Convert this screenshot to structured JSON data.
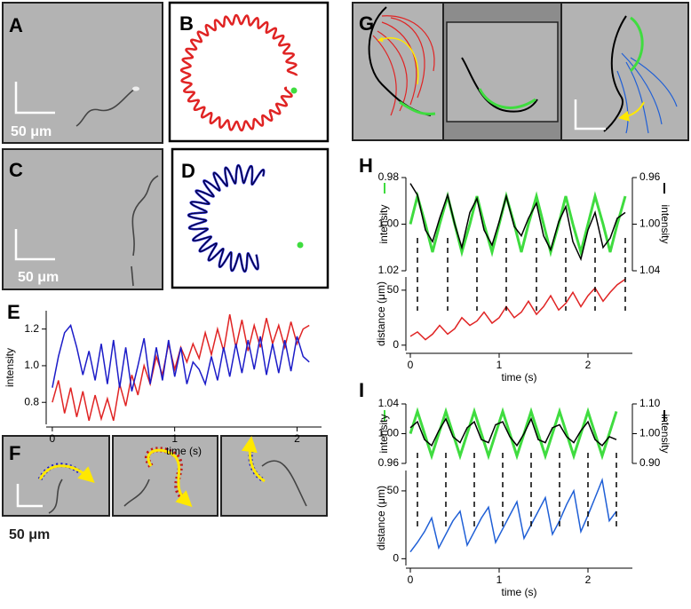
{
  "panels": {
    "A": {
      "label": "A",
      "scale_label": "50 μm"
    },
    "B": {
      "label": "B"
    },
    "C": {
      "label": "C",
      "scale_label": "50 μm"
    },
    "D": {
      "label": "D"
    },
    "F": {
      "label": "F",
      "scale_label": "50 μm"
    },
    "G": {
      "label": "G"
    }
  },
  "chart_data": [
    {
      "type": "line",
      "label": "E",
      "ylabel": "intensity",
      "xlabel": "time (s)",
      "x": [
        0,
        0.05,
        0.1,
        0.15,
        0.2,
        0.25,
        0.3,
        0.35,
        0.4,
        0.45,
        0.5,
        0.55,
        0.6,
        0.65,
        0.7,
        0.75,
        0.8,
        0.85,
        0.9,
        0.95,
        1,
        1.05,
        1.1,
        1.15,
        1.2,
        1.25,
        1.3,
        1.35,
        1.4,
        1.45,
        1.5,
        1.55,
        1.6,
        1.65,
        1.7,
        1.75,
        1.8,
        1.85,
        1.9,
        1.95,
        2,
        2.05,
        2.1
      ],
      "series": [
        {
          "color": "#e02424",
          "values": [
            0.8,
            0.92,
            0.74,
            0.88,
            0.72,
            0.86,
            0.7,
            0.84,
            0.71,
            0.82,
            0.7,
            0.9,
            0.78,
            0.95,
            0.84,
            1,
            0.9,
            1.05,
            0.95,
            1.12,
            0.98,
            1.1,
            1.02,
            1.12,
            1.04,
            1.18,
            1.06,
            1.2,
            1.08,
            1.28,
            1.1,
            1.25,
            1.08,
            1.22,
            1.1,
            1.26,
            1.12,
            1.22,
            1.1,
            1.24,
            1.12,
            1.2,
            1.22
          ]
        },
        {
          "color": "#1c1cc8",
          "values": [
            0.88,
            1.05,
            1.18,
            1.22,
            1.1,
            0.95,
            1.08,
            0.92,
            1.12,
            0.9,
            1.14,
            0.88,
            1.1,
            0.86,
            1,
            1.15,
            0.9,
            1.1,
            0.92,
            1.14,
            0.94,
            1.1,
            0.9,
            1.02,
            0.98,
            0.9,
            1.05,
            0.92,
            1.1,
            0.94,
            1.12,
            0.96,
            1.14,
            0.98,
            1.16,
            0.95,
            1.12,
            0.96,
            1.14,
            0.97,
            1.16,
            1.05,
            1.02
          ]
        }
      ],
      "xlim": [
        -0.05,
        2.2
      ],
      "ylim": [
        0.68,
        1.3
      ],
      "xticks": [
        0,
        1,
        2
      ],
      "yticks": [
        0.8,
        {
          "value": 1,
          "label": "1.0"
        },
        1.2
      ]
    },
    {
      "type": "line",
      "label": "H",
      "ylabel": "intensity",
      "y2label": "intensity",
      "x": [
        0,
        0.08,
        0.17,
        0.25,
        0.33,
        0.42,
        0.5,
        0.58,
        0.67,
        0.75,
        0.83,
        0.92,
        1,
        1.08,
        1.17,
        1.25,
        1.33,
        1.42,
        1.5,
        1.58,
        1.67,
        1.75,
        1.83,
        1.92,
        2,
        2.08,
        2.17,
        2.25,
        2.33,
        2.42
      ],
      "series": [
        {
          "color": "#3fdc3f",
          "axis": "y",
          "values": [
            1,
            0.988,
            1,
            1.012,
            1,
            0.988,
            1,
            1.012,
            1,
            0.988,
            1,
            1.012,
            1,
            0.988,
            1,
            1.012,
            1,
            0.988,
            1,
            1.012,
            1,
            0.988,
            1,
            1.012,
            1,
            0.988,
            1,
            1.012,
            1,
            0.988
          ]
        },
        {
          "color": "#000000",
          "axis": "y2",
          "values": [
            0.965,
            0.975,
            1.005,
            1.015,
            0.995,
            0.975,
            1,
            1.02,
            0.99,
            0.978,
            1.005,
            1.018,
            0.998,
            0.976,
            1.002,
            1.01,
            0.995,
            0.982,
            1.01,
            1.022,
            0.998,
            0.985,
            1.015,
            1.03,
            1.005,
            0.99,
            1.02,
            1.012,
            0.995,
            0.99
          ]
        }
      ],
      "xlim": [
        -0.05,
        2.5
      ],
      "ylim": [
        1.02,
        0.98
      ],
      "yticks": [
        0.98,
        {
          "value": 1,
          "label": "1.00"
        },
        1.02
      ],
      "y2lim": [
        1.04,
        0.96
      ],
      "y2ticks": [
        0.96,
        {
          "value": 1,
          "label": "1.00"
        },
        1.04
      ]
    },
    {
      "type": "line",
      "ylabel": "distance (μm)",
      "xlabel": "time (s)",
      "x": [
        0,
        0.08,
        0.17,
        0.25,
        0.33,
        0.42,
        0.5,
        0.58,
        0.67,
        0.75,
        0.83,
        0.92,
        1,
        1.08,
        1.17,
        1.25,
        1.33,
        1.42,
        1.5,
        1.58,
        1.67,
        1.75,
        1.83,
        1.92,
        2,
        2.08,
        2.17,
        2.25,
        2.33,
        2.42
      ],
      "series": [
        {
          "color": "#e02424",
          "values": [
            8,
            12,
            5,
            10,
            18,
            10,
            15,
            25,
            18,
            22,
            30,
            20,
            25,
            35,
            25,
            30,
            40,
            28,
            35,
            45,
            32,
            38,
            48,
            35,
            45,
            52,
            40,
            48,
            55,
            60
          ]
        }
      ],
      "xlim": [
        -0.05,
        2.5
      ],
      "ylim": [
        -5,
        62
      ],
      "xticks": [
        0,
        1,
        2
      ],
      "yticks": [
        0,
        50
      ]
    },
    {
      "type": "line",
      "label": "I",
      "ylabel": "intensity",
      "y2label": "intensity",
      "x": [
        0,
        0.08,
        0.16,
        0.24,
        0.32,
        0.4,
        0.48,
        0.56,
        0.64,
        0.72,
        0.8,
        0.88,
        0.96,
        1.04,
        1.12,
        1.2,
        1.28,
        1.36,
        1.44,
        1.52,
        1.6,
        1.68,
        1.76,
        1.84,
        1.92,
        2,
        2.08,
        2.16,
        2.24,
        2.32
      ],
      "series": [
        {
          "color": "#3fdc3f",
          "axis": "y",
          "values": [
            1,
            1.03,
            1,
            0.97,
            1,
            1.03,
            1,
            0.97,
            1,
            1.03,
            1,
            0.97,
            1,
            1.03,
            1,
            0.97,
            1,
            1.03,
            1,
            0.97,
            1,
            1.03,
            1,
            0.97,
            1,
            1.03,
            1,
            0.97,
            1,
            1.03
          ]
        },
        {
          "color": "#000000",
          "axis": "y2",
          "values": [
            1.02,
            1.04,
            0.98,
            0.96,
            1.01,
            1.05,
            0.99,
            0.97,
            1.02,
            1.04,
            0.98,
            0.97,
            1.03,
            1.04,
            0.99,
            0.96,
            1,
            1.05,
            0.98,
            0.97,
            1.02,
            1.03,
            0.99,
            0.97,
            1.01,
            1.04,
            0.98,
            0.96,
            0.99,
            0.98
          ]
        }
      ],
      "xlim": [
        -0.05,
        2.5
      ],
      "ylim": [
        0.96,
        1.04
      ],
      "yticks": [
        0.96,
        {
          "value": 1,
          "label": "1.00"
        },
        1.04
      ],
      "y2lim": [
        0.9,
        1.1
      ],
      "y2ticks": [
        {
          "value": 0.9,
          "label": "0.90"
        },
        {
          "value": 1,
          "label": "1.00"
        },
        {
          "value": 1.1,
          "label": "1.10"
        }
      ]
    },
    {
      "type": "line",
      "ylabel": "distance (μm)",
      "xlabel": "time (s)",
      "x": [
        0,
        0.08,
        0.16,
        0.24,
        0.32,
        0.4,
        0.48,
        0.56,
        0.64,
        0.72,
        0.8,
        0.88,
        0.96,
        1.04,
        1.12,
        1.2,
        1.28,
        1.36,
        1.44,
        1.52,
        1.6,
        1.68,
        1.76,
        1.84,
        1.92,
        2,
        2.08,
        2.16,
        2.24,
        2.32
      ],
      "series": [
        {
          "color": "#1f5fd6",
          "values": [
            5,
            12,
            20,
            30,
            8,
            18,
            28,
            35,
            10,
            20,
            30,
            38,
            12,
            22,
            32,
            42,
            15,
            25,
            35,
            45,
            18,
            28,
            40,
            50,
            20,
            32,
            45,
            58,
            28,
            35
          ]
        }
      ],
      "xlim": [
        -0.05,
        2.5
      ],
      "ylim": [
        -5,
        65
      ],
      "xticks": [
        0,
        1,
        2
      ],
      "yticks": [
        0,
        50
      ]
    }
  ]
}
